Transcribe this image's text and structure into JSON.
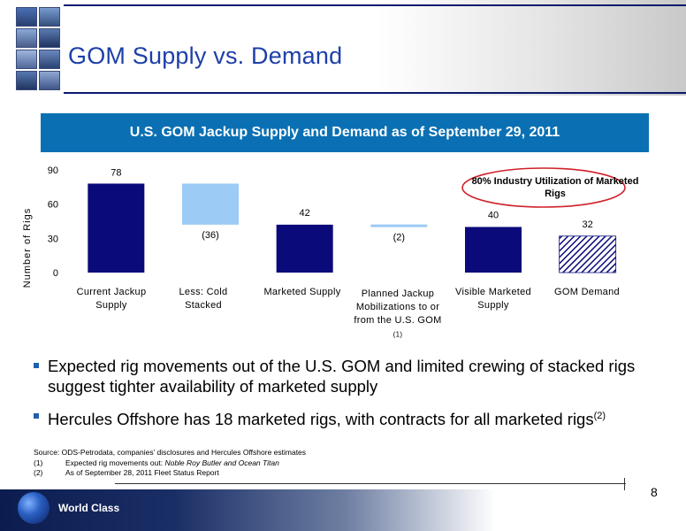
{
  "slide": {
    "title": "GOM Supply vs. Demand",
    "page_number": "8",
    "footer_brand": "World Class"
  },
  "chart_data": {
    "type": "bar",
    "title": "U.S. GOM Jackup Supply and Demand as of September 29, 2011",
    "ylabel": "Number of Rigs",
    "ylim": [
      0,
      90
    ],
    "yticks": [
      0,
      30,
      60,
      90
    ],
    "categories": [
      "Current Jackup Supply",
      "Less: Cold Stacked",
      "Marketed Supply",
      "Planned Jackup Mobilizations to or from the U.S. GOM (1)",
      "Visible Marketed Supply",
      "GOM Demand"
    ],
    "values": [
      78,
      -36,
      42,
      -2,
      40,
      32
    ],
    "data_labels": [
      "78",
      "(36)",
      "42",
      "(2)",
      "40",
      "32"
    ],
    "waterfall": true,
    "annotation": "80% Industry Utilization of Marketed Rigs",
    "colors": {
      "total": "#0a0a7a",
      "decrease": "#9ccbf5",
      "demand_hatch": "#0a0a7a"
    }
  },
  "bullets": [
    "Expected rig movements out of the U.S. GOM and limited crewing of stacked rigs suggest tighter availability of marketed supply",
    "Hercules Offshore has 18 marketed rigs, with contracts for all marketed rigs"
  ],
  "bullet2_sup": "(2)",
  "footnotes": {
    "source": "Source: ODS-Petrodata, companies’ disclosures and Hercules Offshore estimates",
    "note1_num": "(1)",
    "note1_text": "Expected rig movements out: ",
    "note1_italic": "Noble Roy Butler and Ocean Titan",
    "note2_num": "(2)",
    "note2_text": "As of September 28, 2011 Fleet Status Report"
  }
}
